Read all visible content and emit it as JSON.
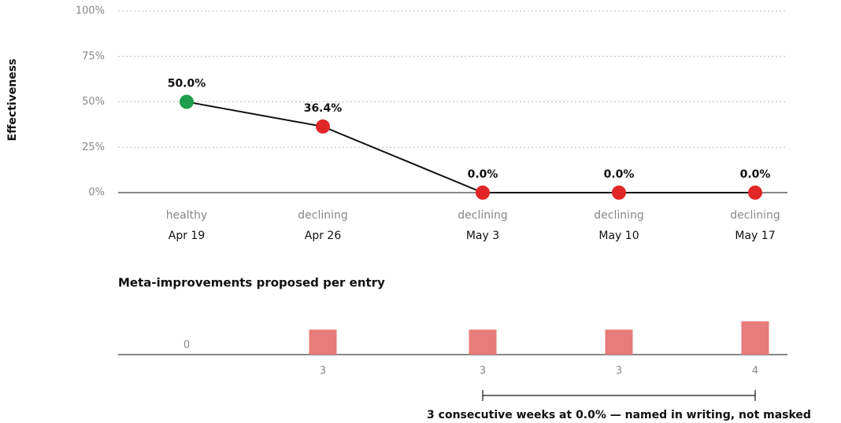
{
  "chart_data": [
    {
      "type": "line",
      "y_label": "Effectiveness",
      "categories": [
        "Apr 19",
        "Apr 26",
        "May 3",
        "May 10",
        "May 17"
      ],
      "statuses": [
        "healthy",
        "declining",
        "declining",
        "declining",
        "declining"
      ],
      "values": [
        50,
        36.4,
        0,
        0,
        0
      ],
      "value_labels": [
        "50.0%",
        "36.4%",
        "0.0%",
        "0.0%",
        "0.0%"
      ],
      "point_colors": [
        "#1e9e4a",
        "#e02626",
        "#e02626",
        "#e02626",
        "#e02626"
      ],
      "color": "#111111",
      "ylim": [
        0,
        100
      ],
      "yticks": [
        {
          "value": 0,
          "label": "0%"
        },
        {
          "value": 25,
          "label": "25%"
        },
        {
          "value": 50,
          "label": "50%"
        },
        {
          "value": 75,
          "label": "75%"
        },
        {
          "value": 100,
          "label": "100%"
        }
      ],
      "grid": true
    },
    {
      "type": "bar",
      "title": "Meta-improvements proposed per entry",
      "values": [
        0,
        3,
        3,
        3,
        4
      ],
      "color": "#e87b7b",
      "annotation": "3 consecutive weeks at 0.0% — named in writing, not masked"
    }
  ]
}
